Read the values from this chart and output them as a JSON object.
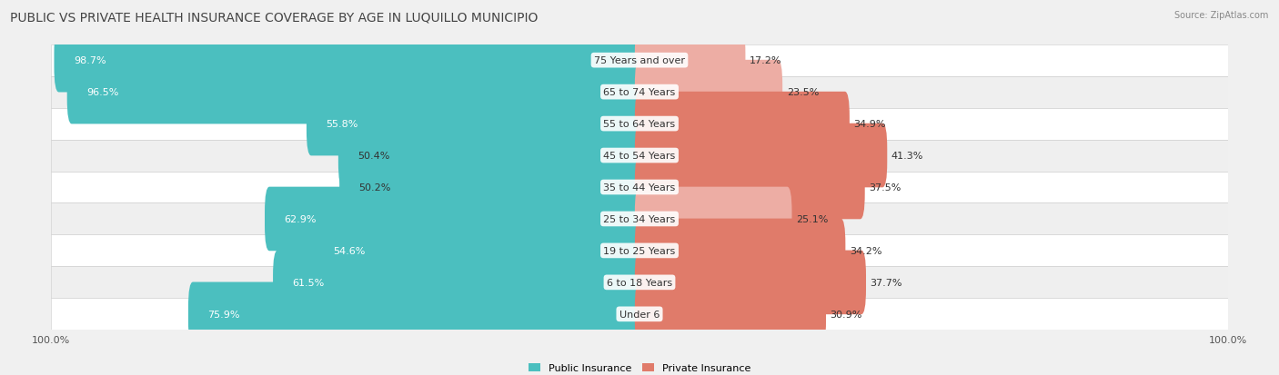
{
  "title": "PUBLIC VS PRIVATE HEALTH INSURANCE COVERAGE BY AGE IN LUQUILLO MUNICIPIO",
  "source": "Source: ZipAtlas.com",
  "categories": [
    "Under 6",
    "6 to 18 Years",
    "19 to 25 Years",
    "25 to 34 Years",
    "35 to 44 Years",
    "45 to 54 Years",
    "55 to 64 Years",
    "65 to 74 Years",
    "75 Years and over"
  ],
  "public_values": [
    75.9,
    61.5,
    54.6,
    62.9,
    50.2,
    50.4,
    55.8,
    96.5,
    98.7
  ],
  "private_values": [
    30.9,
    37.7,
    34.2,
    25.1,
    37.5,
    41.3,
    34.9,
    23.5,
    17.2
  ],
  "public_color": "#4BBFBF",
  "private_color": "#E07B6A",
  "private_color_light": "#EDADA4",
  "row_bg_even": "#F2F2F2",
  "row_bg_odd": "#E8E8E8",
  "max_value": 100.0,
  "legend_public": "Public Insurance",
  "legend_private": "Private Insurance",
  "title_fontsize": 10,
  "label_fontsize": 8,
  "value_fontsize": 8,
  "category_fontsize": 8,
  "source_fontsize": 7
}
